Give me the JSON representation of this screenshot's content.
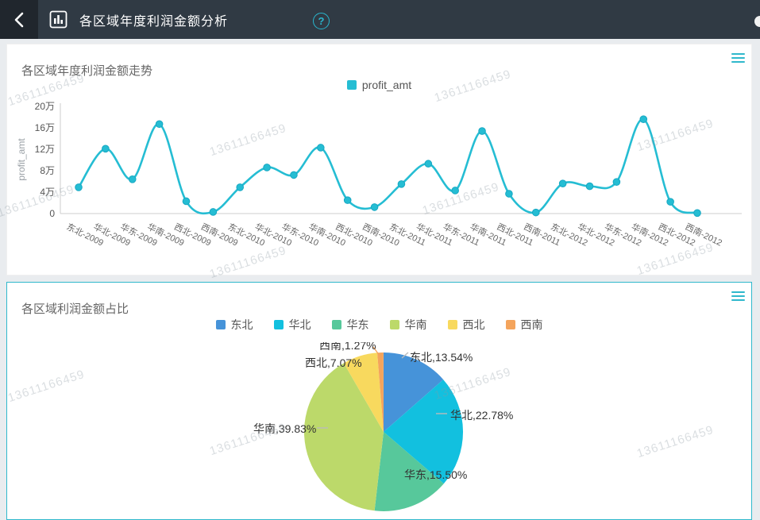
{
  "header": {
    "title": "各区域年度利润金额分析",
    "help_glyph": "?"
  },
  "watermark": {
    "text": "13611166459"
  },
  "chart_data": [
    {
      "type": "line",
      "title": "各区域年度利润金额走势",
      "series": [
        {
          "name": "profit_amt"
        }
      ],
      "categories": [
        "东北-2009",
        "华北-2009",
        "华东-2009",
        "华南-2009",
        "西北-2009",
        "西南-2009",
        "东北-2010",
        "华北-2010",
        "华东-2010",
        "华南-2010",
        "西北-2010",
        "西南-2010",
        "东北-2011",
        "华北-2011",
        "华东-2011",
        "华南-2011",
        "西北-2011",
        "西南-2011",
        "东北-2012",
        "华北-2012",
        "华东-2012",
        "华南-2012",
        "西北-2012",
        "西南-2012"
      ],
      "values": [
        49000,
        121000,
        64000,
        167000,
        23000,
        3000,
        49000,
        86000,
        72000,
        123000,
        25000,
        12000,
        55000,
        93000,
        43000,
        154000,
        37000,
        2000,
        56000,
        51000,
        59000,
        176000,
        22000,
        1000
      ],
      "ylabel": "profit_amt",
      "yticks": [
        "0",
        "4万",
        "8万",
        "12万",
        "16万",
        "20万"
      ],
      "ylim": [
        0,
        200000
      ],
      "grid": false,
      "legend_position": "top",
      "line_color": "#25bdd3",
      "smooth": true
    },
    {
      "type": "pie",
      "title": "各区域利润金额占比",
      "labels": [
        "东北",
        "华北",
        "华东",
        "华南",
        "西北",
        "西南"
      ],
      "values": [
        13.54,
        22.78,
        15.5,
        39.83,
        7.07,
        1.27
      ],
      "colors": [
        "#4693d9",
        "#12c0df",
        "#57c89b",
        "#bcd96a",
        "#f8d95e",
        "#f4a45c"
      ],
      "label_format": "name,percent%",
      "legend_position": "top"
    }
  ]
}
